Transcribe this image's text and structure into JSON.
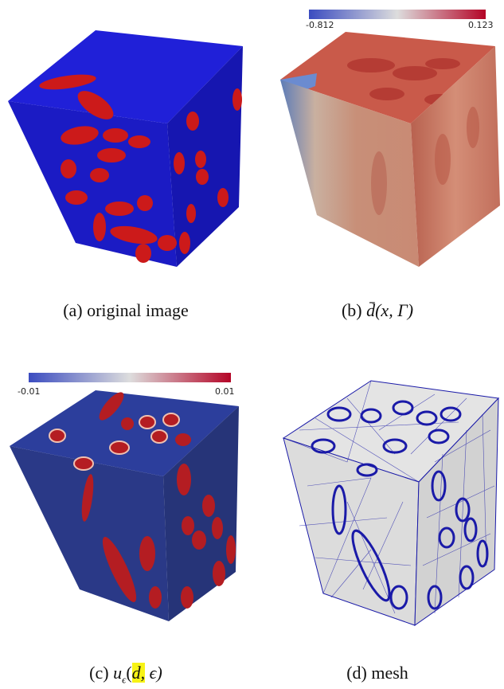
{
  "figure": {
    "panels": [
      {
        "id": "a",
        "caption": "(a) original image"
      },
      {
        "id": "b",
        "caption_prefix": "(b) ",
        "caption_math": "d̄(x, Γ)",
        "colorbar": {
          "min": "-0.812",
          "max": "0.123"
        }
      },
      {
        "id": "c",
        "caption_prefix": "(c) ",
        "caption_math_u": "u",
        "caption_math_sub": "ϵ",
        "caption_hl": "d,",
        "caption_tail": " ϵ)",
        "colorbar": {
          "min": "-0.01",
          "max": "0.01"
        }
      },
      {
        "id": "d",
        "caption": "(d) mesh"
      }
    ]
  },
  "colors": {
    "blue_phase": "#1d1ccc",
    "red_phase": "#cc1a1a",
    "cb_low": "#3b4cc0",
    "cb_mid": "#dddddd",
    "cb_high": "#b40426",
    "mesh_line": "#1a1aa8",
    "mesh_face": "#dcdcdc"
  }
}
